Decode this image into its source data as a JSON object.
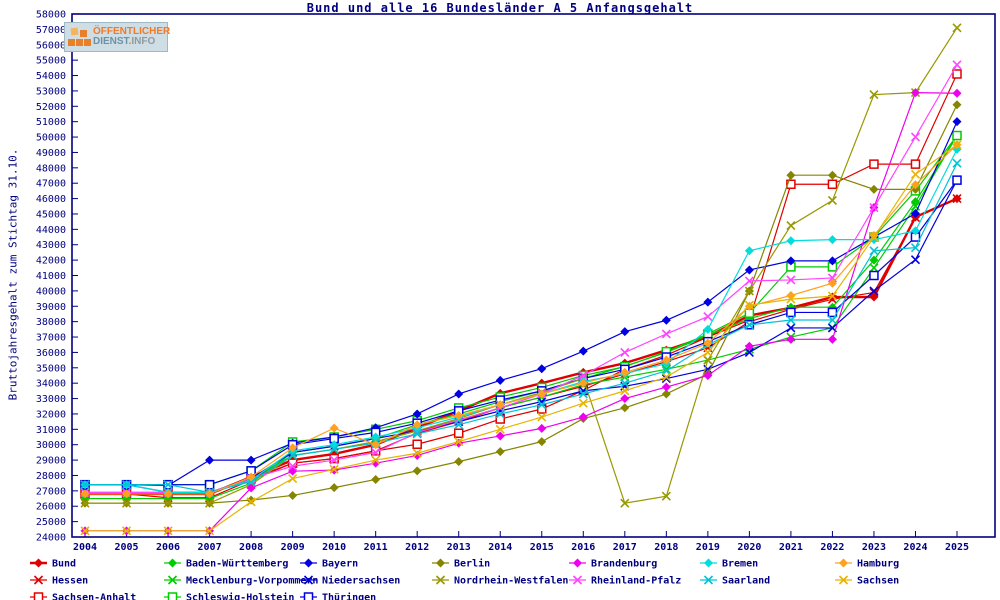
{
  "title": "Bund und alle 16 Bundesländer A 5 Anfangsgehalt",
  "y_axis_label": "Bruttojahresgehalt zum Stichtag 31.10.",
  "logo": {
    "line1": "ÖFFENTLICHER",
    "line2_part1": "DIENST",
    "line2_dot": ".",
    "line2_part2": "INFO"
  },
  "colors": {
    "axis_and_text": "#000080",
    "background": "#ffffff"
  },
  "chart_data": {
    "type": "line",
    "title": "Bund und alle 16 Bundesländer A 5 Anfangsgehalt",
    "ylabel": "Bruttojahresgehalt zum Stichtag 31.10.",
    "xlabel": "",
    "grid": false,
    "legend_position": "bottom",
    "ylim": [
      24000,
      58000
    ],
    "ytick_step": 1000,
    "x": [
      2004,
      2005,
      2006,
      2007,
      2008,
      2009,
      2010,
      2011,
      2012,
      2013,
      2014,
      2015,
      2016,
      2017,
      2018,
      2019,
      2020,
      2021,
      2022,
      2023,
      2024,
      2025
    ],
    "series": [
      {
        "name": "Bund",
        "color": "#e00000",
        "marker": "diamond",
        "lw": 2.4,
        "values": [
          26800,
          26800,
          26800,
          26800,
          27900,
          29000,
          29400,
          30000,
          31100,
          32200,
          33340,
          34000,
          34700,
          35300,
          36150,
          37040,
          38400,
          38900,
          39600,
          39600,
          44800,
          46000
        ]
      },
      {
        "name": "Hessen",
        "color": "#e00000",
        "marker": "x",
        "lw": 1.2,
        "values": [
          26800,
          26800,
          26550,
          26550,
          27700,
          28800,
          29100,
          29600,
          30745,
          31500,
          32400,
          33100,
          33800,
          34600,
          35400,
          36300,
          38000,
          38800,
          39450,
          39900,
          44770,
          46000
        ]
      },
      {
        "name": "Sachsen-Anhalt",
        "color": "#e00000",
        "marker": "square",
        "lw": 1.2,
        "values": [
          26800,
          26800,
          26800,
          26800,
          27800,
          28800,
          29100,
          29600,
          30030,
          30745,
          31670,
          32320,
          33525,
          34900,
          35820,
          37000,
          38105,
          46930,
          46930,
          48240,
          48240,
          54100
        ]
      },
      {
        "name": "Baden-Württemberg",
        "color": "#00cc00",
        "marker": "diamond",
        "lw": 1.2,
        "values": [
          26500,
          26500,
          26500,
          26500,
          27500,
          29500,
          29900,
          30400,
          31300,
          32000,
          32800,
          33500,
          34300,
          35100,
          36000,
          37100,
          38200,
          38940,
          38940,
          42000,
          45800,
          50100
        ]
      },
      {
        "name": "Mecklenburg-Vorpommern",
        "color": "#00cc00",
        "marker": "x",
        "lw": 1.2,
        "values": [
          26900,
          26900,
          26900,
          26900,
          27800,
          29300,
          29700,
          30200,
          30900,
          31600,
          32400,
          33100,
          33900,
          34400,
          34900,
          35500,
          36200,
          37000,
          37600,
          41500,
          45500,
          50100
        ]
      },
      {
        "name": "Schleswig-Holstein",
        "color": "#00cc00",
        "marker": "square",
        "lw": 1.2,
        "values": [
          27400,
          27400,
          27400,
          27400,
          28300,
          30180,
          30500,
          31000,
          31565,
          32390,
          33100,
          33725,
          34500,
          35070,
          36050,
          37200,
          38550,
          41560,
          41560,
          43500,
          46500,
          50100
        ]
      },
      {
        "name": "Bayern",
        "color": "#0000e0",
        "marker": "diamond",
        "lw": 1.2,
        "values": [
          27400,
          27400,
          27350,
          29000,
          29000,
          30100,
          30500,
          31100,
          32000,
          33300,
          34180,
          34940,
          36080,
          37350,
          38090,
          39270,
          41360,
          41950,
          41950,
          43500,
          45030,
          51000
        ]
      },
      {
        "name": "Niedersachsen",
        "color": "#0000e0",
        "marker": "x",
        "lw": 1.2,
        "values": [
          27400,
          27400,
          26900,
          26900,
          27800,
          29500,
          29900,
          30400,
          30900,
          31500,
          32200,
          32800,
          33500,
          33800,
          34300,
          34900,
          36000,
          37590,
          37590,
          40000,
          42030,
          47200
        ]
      },
      {
        "name": "Thüringen",
        "color": "#0000e0",
        "marker": "square",
        "lw": 1.2,
        "values": [
          27400,
          27400,
          27400,
          27400,
          28300,
          30000,
          30400,
          30800,
          31400,
          32200,
          32900,
          33500,
          34300,
          34900,
          35700,
          36700,
          37800,
          38600,
          38600,
          41000,
          43500,
          47200
        ]
      },
      {
        "name": "Berlin",
        "color": "#858500",
        "marker": "diamond",
        "lw": 1.2,
        "values": [
          26200,
          26200,
          26200,
          26200,
          26400,
          26700,
          27210,
          27740,
          28300,
          28900,
          29550,
          30200,
          31700,
          32400,
          33300,
          34600,
          39990,
          47520,
          47520,
          46600,
          46600,
          52100
        ]
      },
      {
        "name": "Nordrhein-Westfalen",
        "color": "#989800",
        "marker": "x",
        "lw": 1.2,
        "values": [
          26200,
          26200,
          26200,
          26200,
          27400,
          29300,
          29700,
          30200,
          30900,
          31700,
          32600,
          33400,
          34300,
          26200,
          26650,
          35500,
          39990,
          44245,
          45880,
          52760,
          52890,
          57100
        ]
      },
      {
        "name": "Brandenburg",
        "color": "#ee00ee",
        "marker": "diamond",
        "lw": 1.2,
        "values": [
          24400,
          24400,
          24400,
          24400,
          27190,
          28280,
          28350,
          28800,
          29300,
          30100,
          30570,
          31060,
          31800,
          33000,
          33750,
          34500,
          36400,
          36850,
          36850,
          45420,
          52890,
          52850
        ]
      },
      {
        "name": "Rheinland-Pfalz",
        "color": "#ff44ff",
        "marker": "x",
        "lw": 1.2,
        "values": [
          26900,
          26900,
          26900,
          26900,
          27800,
          28600,
          29000,
          29500,
          30800,
          31600,
          32400,
          33300,
          34500,
          36000,
          37200,
          38330,
          40650,
          40710,
          40840,
          45420,
          50010,
          54700
        ]
      },
      {
        "name": "Bremen",
        "color": "#00dddd",
        "marker": "diamond",
        "lw": 1.2,
        "values": [
          27400,
          27400,
          26900,
          26900,
          27700,
          29600,
          30000,
          30500,
          31100,
          31800,
          32600,
          33300,
          34100,
          34620,
          35270,
          37500,
          42610,
          43260,
          43330,
          43330,
          43900,
          49200
        ]
      },
      {
        "name": "Saarland",
        "color": "#00c4d4",
        "marker": "x",
        "lw": 1.2,
        "values": [
          27400,
          27400,
          27400,
          26900,
          27600,
          29300,
          29700,
          30100,
          30700,
          31300,
          32000,
          32600,
          33300,
          34000,
          34800,
          36500,
          37790,
          38105,
          38105,
          42605,
          42810,
          48300
        ]
      },
      {
        "name": "Hamburg",
        "color": "#ffa020",
        "marker": "diamond",
        "lw": 1.2,
        "values": [
          26800,
          26800,
          26800,
          26800,
          27900,
          29800,
          31080,
          30000,
          31300,
          31900,
          32600,
          33300,
          34000,
          34700,
          35500,
          36600,
          39000,
          39700,
          40500,
          43600,
          46900,
          49500
        ]
      },
      {
        "name": "Sachsen",
        "color": "#e8b400",
        "marker": "x",
        "lw": 1.2,
        "values": [
          24400,
          24400,
          24400,
          24400,
          26290,
          27800,
          28400,
          29000,
          29445,
          30200,
          31000,
          31800,
          32700,
          33500,
          34400,
          36000,
          39070,
          39465,
          39660,
          43500,
          47580,
          49500
        ]
      }
    ]
  }
}
